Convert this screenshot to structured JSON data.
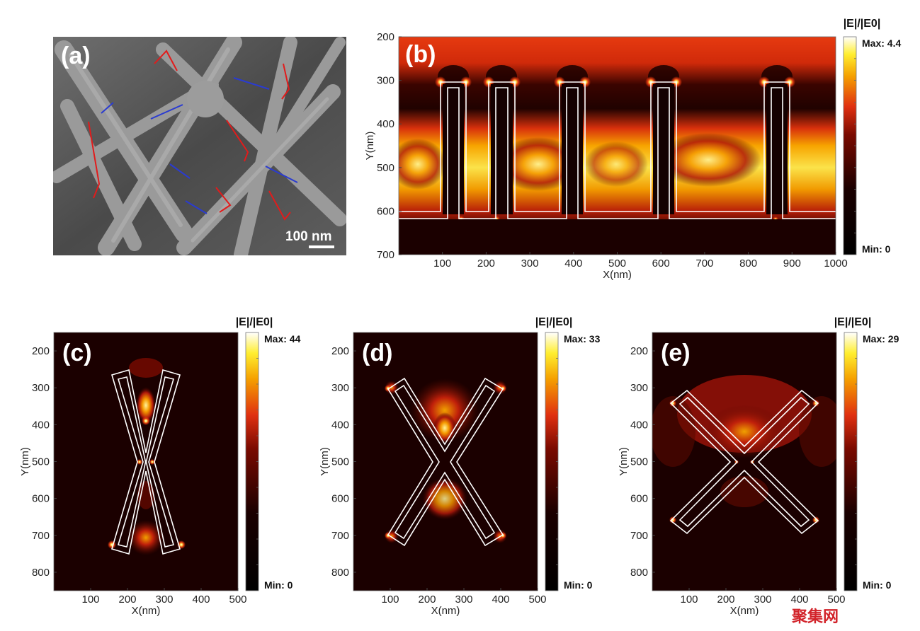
{
  "panels": {
    "a": {
      "label": "(a)",
      "scale_bar": "100 nm"
    },
    "b": {
      "label": "(b)"
    },
    "c": {
      "label": "(c)"
    },
    "d": {
      "label": "(d)"
    },
    "e": {
      "label": "(e)"
    }
  },
  "watermark": "聚集网",
  "colors": {
    "field_min": "#1a0000",
    "field_mid": "#e8301a",
    "field_max": "#ffffff",
    "outline": "#ffffff",
    "sem_gray": "#7a7a7a",
    "arrow_blue": "#2a3bd1",
    "edge_red": "#e21b1b"
  },
  "chart_data": [
    {
      "panel": "b",
      "type": "heatmap",
      "xlabel": "X(nm)",
      "ylabel": "Y(nm)",
      "x_ticks": [
        "100",
        "200",
        "300",
        "400",
        "500",
        "600",
        "700",
        "800",
        "900",
        "1000"
      ],
      "y_ticks": [
        "200",
        "300",
        "400",
        "500",
        "600",
        "700"
      ],
      "xlim": [
        0,
        1000
      ],
      "ylim": [
        700,
        200
      ],
      "colorbar": {
        "title": "|E|/|E0|",
        "max_label": "Max: 4.4",
        "min_label": "Min: 0",
        "max": 4.4,
        "min": 0
      }
    },
    {
      "panel": "c",
      "type": "heatmap",
      "xlabel": "X(nm)",
      "ylabel": "Y(nm)",
      "x_ticks": [
        "100",
        "200",
        "300",
        "400",
        "500"
      ],
      "y_ticks": [
        "200",
        "300",
        "400",
        "500",
        "600",
        "700",
        "800"
      ],
      "xlim": [
        0,
        500
      ],
      "ylim": [
        850,
        150
      ],
      "colorbar": {
        "title": "|E|/|E0|",
        "max_label": "Max: 44",
        "min_label": "Min: 0",
        "max": 44,
        "min": 0
      }
    },
    {
      "panel": "d",
      "type": "heatmap",
      "xlabel": "X(nm)",
      "ylabel": "Y(nm)",
      "x_ticks": [
        "100",
        "200",
        "300",
        "400",
        "500"
      ],
      "y_ticks": [
        "200",
        "300",
        "400",
        "500",
        "600",
        "700",
        "800"
      ],
      "xlim": [
        0,
        500
      ],
      "ylim": [
        850,
        150
      ],
      "colorbar": {
        "title": "|E|/|E0|",
        "max_label": "Max: 33",
        "min_label": "Min: 0",
        "max": 33,
        "min": 0
      }
    },
    {
      "panel": "e",
      "type": "heatmap",
      "xlabel": "X(nm)",
      "ylabel": "Y(nm)",
      "x_ticks": [
        "100",
        "200",
        "300",
        "400",
        "500"
      ],
      "y_ticks": [
        "200",
        "300",
        "400",
        "500",
        "600",
        "700",
        "800"
      ],
      "xlim": [
        0,
        500
      ],
      "ylim": [
        850,
        150
      ],
      "colorbar": {
        "title": "|E|/|E0|",
        "max_label": "Max: 29",
        "min_label": "Min: 0",
        "max": 29,
        "min": 0
      }
    }
  ]
}
